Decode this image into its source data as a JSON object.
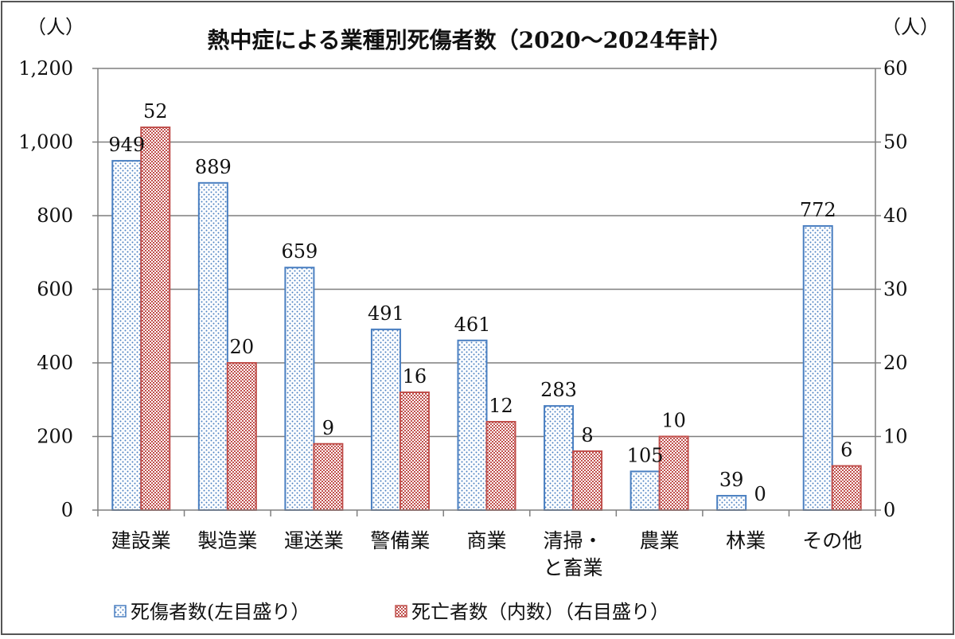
{
  "chart_data": {
    "type": "bar",
    "title": "熱中症による業種別死傷者数（2020～2024年計）",
    "left_unit": "（人）",
    "right_unit": "（人）",
    "categories": [
      [
        "建設業"
      ],
      [
        "製造業"
      ],
      [
        "運送業"
      ],
      [
        "警備業"
      ],
      [
        "商業"
      ],
      [
        "清掃・",
        "と畜業"
      ],
      [
        "農業"
      ],
      [
        "林業"
      ],
      [
        "その他"
      ]
    ],
    "series": [
      {
        "name": "死傷者数(左目盛り）",
        "axis": "left",
        "values": [
          949,
          889,
          659,
          491,
          461,
          283,
          105,
          39,
          772
        ],
        "color": "#4a7fc1",
        "pattern": "dots"
      },
      {
        "name": "死亡者数（内数）（右目盛り）",
        "axis": "right",
        "values": [
          52,
          20,
          9,
          16,
          12,
          8,
          10,
          0,
          6
        ],
        "color": "#c0504d",
        "pattern": "checker"
      }
    ],
    "left_axis": {
      "min": 0,
      "max": 1200,
      "step": 200,
      "ticks": [
        "0",
        "200",
        "400",
        "600",
        "800",
        "1,000",
        "1,200"
      ]
    },
    "right_axis": {
      "min": 0,
      "max": 60,
      "step": 10,
      "ticks": [
        "0",
        "10",
        "20",
        "30",
        "40",
        "50",
        "60"
      ]
    },
    "grid": true,
    "legend_position": "bottom"
  }
}
